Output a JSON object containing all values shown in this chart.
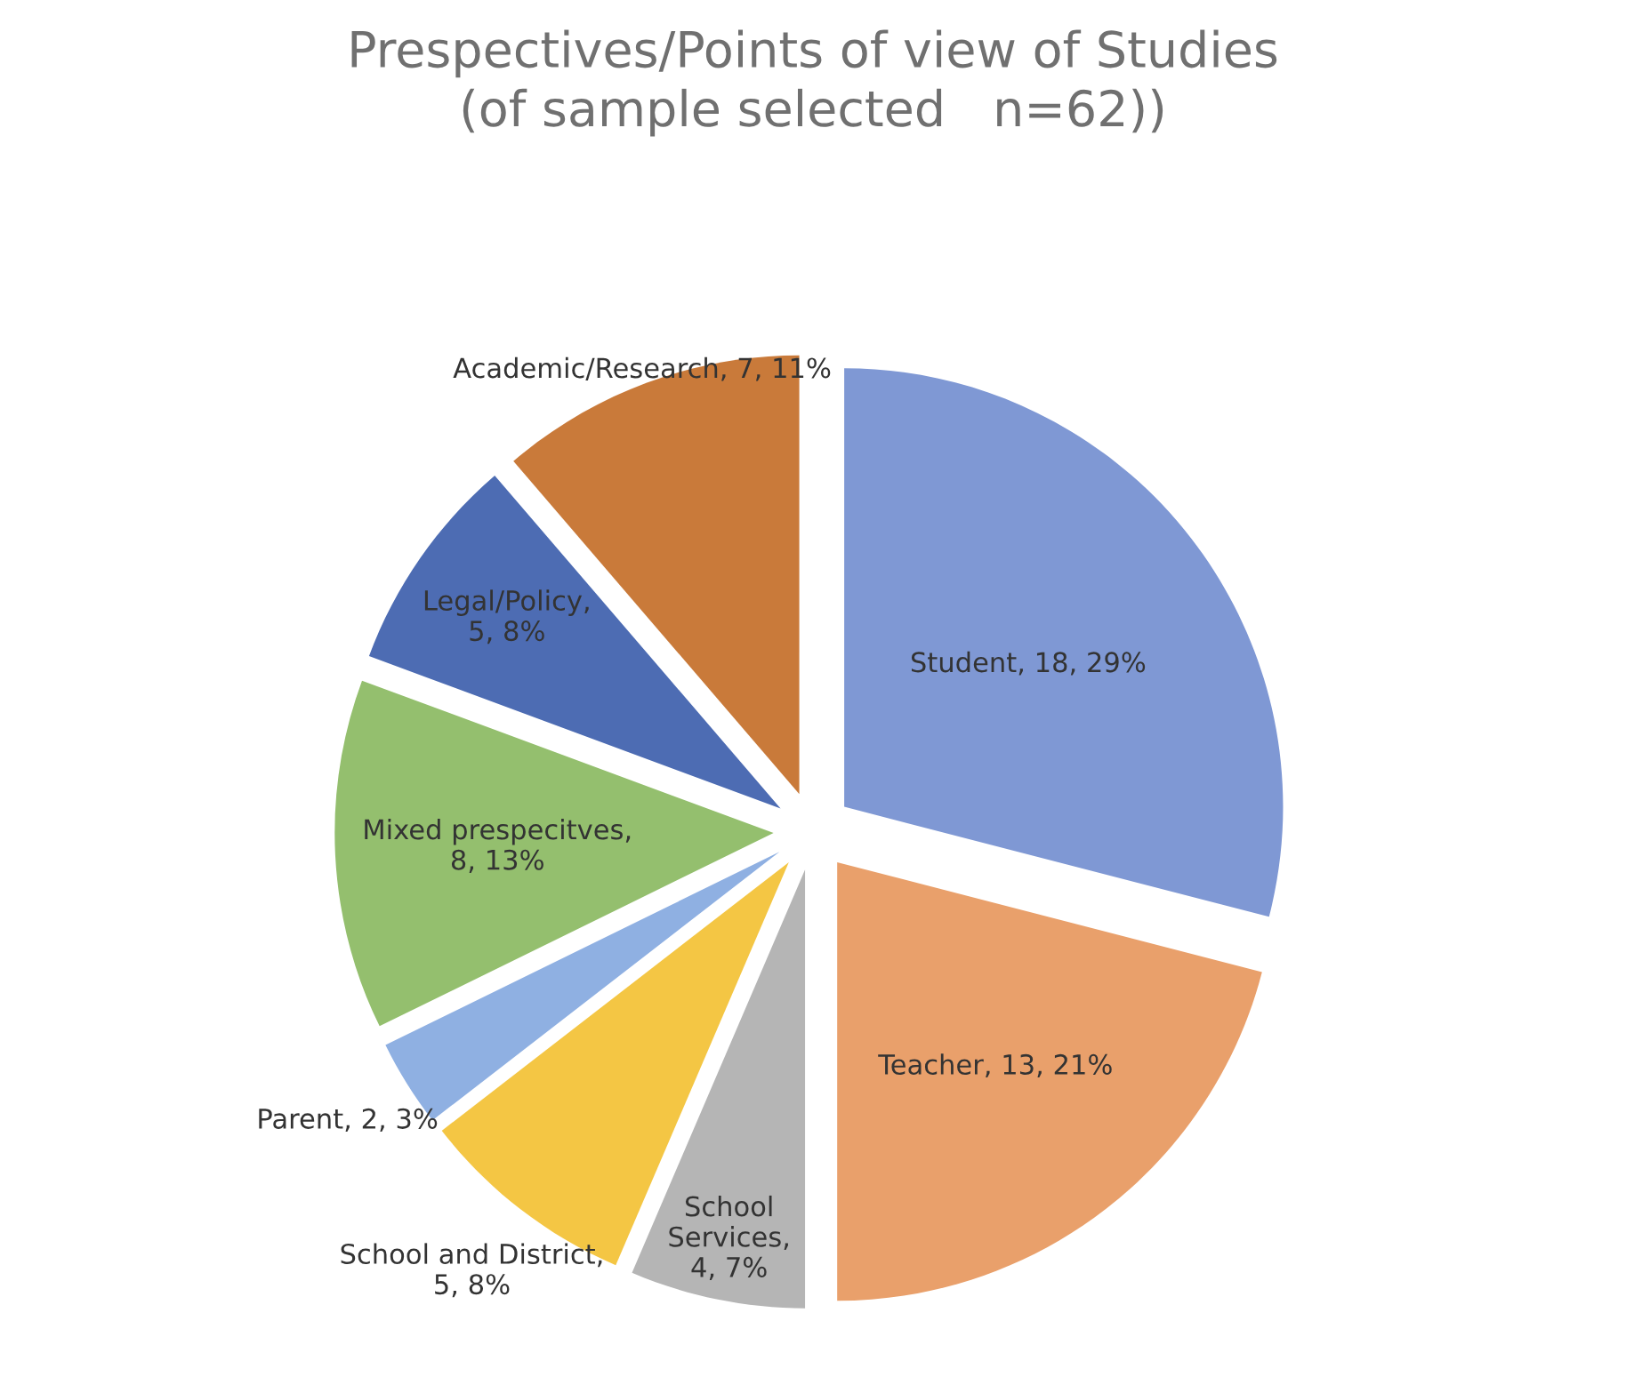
{
  "chart_data": {
    "type": "pie",
    "title": "Prespectives/Points of view of Studies\n(of sample selected   n=62))",
    "categories": [
      "Student",
      "Teacher",
      "School Services",
      "School and District",
      "Parent",
      "Mixed prespecitves",
      "Legal/Policy",
      "Academic/Research"
    ],
    "values": [
      18,
      13,
      4,
      5,
      2,
      8,
      5,
      7
    ],
    "colors": [
      "#7f98d4",
      "#e9a06b",
      "#b5b5b5",
      "#f4c644",
      "#8fb0e2",
      "#94bf6e",
      "#4d6cb3",
      "#c97a3a"
    ],
    "value_labels": [
      ", 18, 29%",
      ", 13, 21%",
      ",\n4, 7%",
      ",\n5, 8%",
      ", 2, 3%",
      ",\n8, 13%",
      ",\n5, 8%",
      ", 7, 11%"
    ]
  }
}
